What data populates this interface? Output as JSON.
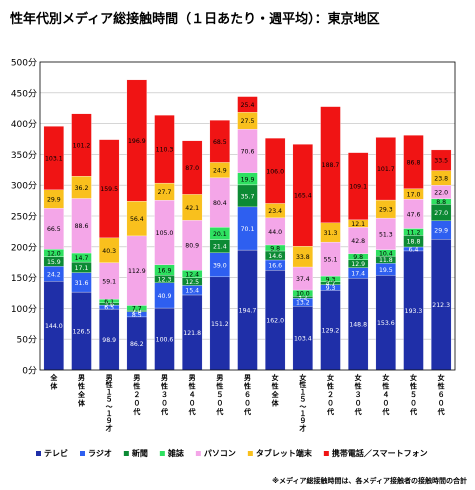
{
  "chart_data": {
    "type": "bar",
    "stacked": true,
    "title": "性年代別メディア総接触時間（１日あたり・週平均）：東京地区",
    "ylim": [
      0,
      500
    ],
    "yticks": [
      "0分",
      "50分",
      "100分",
      "150分",
      "200分",
      "250分",
      "300分",
      "350分",
      "400分",
      "450分",
      "500分"
    ],
    "ytick_values": [
      0,
      50,
      100,
      150,
      200,
      250,
      300,
      350,
      400,
      450,
      500
    ],
    "grid": true,
    "legend_position": "bottom",
    "categories": [
      "全体",
      "男性全体",
      "男性１５～１９才",
      "男性２０代",
      "男性３０代",
      "男性４０代",
      "男性５０代",
      "男性６０代",
      "女性全体",
      "女性１５～１９才",
      "女性２０代",
      "女性３０代",
      "女性４０代",
      "女性５０代",
      "女性６０代"
    ],
    "series": [
      {
        "name": "テレビ",
        "color": "#1f2fa8",
        "label_color": "#ffffff",
        "values": [
          144.0,
          126.5,
          98.9,
          86.2,
          100.6,
          121.8,
          151.2,
          194.7,
          162.0,
          103.4,
          129.2,
          148.8,
          153.6,
          193.3,
          212.3
        ]
      },
      {
        "name": "ラジオ",
        "color": "#2e5ff0",
        "label_color": "#ffffff",
        "values": [
          24.2,
          31.6,
          6.5,
          8.5,
          40.9,
          15.4,
          39.0,
          70.1,
          16.6,
          13.2,
          9.3,
          17.4,
          19.5,
          6.4,
          29.9
        ]
      },
      {
        "name": "新聞",
        "color": "#0c8a34",
        "label_color": "#ffffff",
        "values": [
          15.9,
          17.1,
          3.6,
          2.4,
          12.3,
          12.5,
          21.4,
          35.7,
          14.6,
          3.2,
          4.7,
          12.9,
          11.8,
          18.8,
          27.0
        ]
      },
      {
        "name": "雑誌",
        "color": "#2ee060",
        "label_color": "#000000",
        "values": [
          12.0,
          14.7,
          6.1,
          7.7,
          16.9,
          12.4,
          20.1,
          19.9,
          9.8,
          10.0,
          9.3,
          9.8,
          10.4,
          11.2,
          8.8
        ]
      },
      {
        "name": "パソコン",
        "color": "#f4a6e8",
        "label_color": "#000000",
        "values": [
          66.5,
          88.6,
          59.1,
          112.9,
          105.0,
          80.9,
          80.4,
          70.6,
          44.0,
          37.4,
          55.1,
          42.8,
          51.3,
          47.6,
          22.0
        ]
      },
      {
        "name": "タブレット端末",
        "color": "#f9c01d",
        "label_color": "#000000",
        "values": [
          29.9,
          36.2,
          40.3,
          56.4,
          27.7,
          42.1,
          24.9,
          27.5,
          23.4,
          33.8,
          31.3,
          12.1,
          29.3,
          17.0,
          23.8
        ]
      },
      {
        "name": "携帯電話／スマートフォン",
        "color": "#f01414",
        "label_color": "#000000",
        "values": [
          103.1,
          101.2,
          159.5,
          196.9,
          110.3,
          87.0,
          68.5,
          25.4,
          106.0,
          165.4,
          188.7,
          109.1,
          101.7,
          86.8,
          33.5
        ]
      }
    ],
    "footnote": "※メディア総接触時間は、各メディア接触者の接触時間の合計"
  }
}
